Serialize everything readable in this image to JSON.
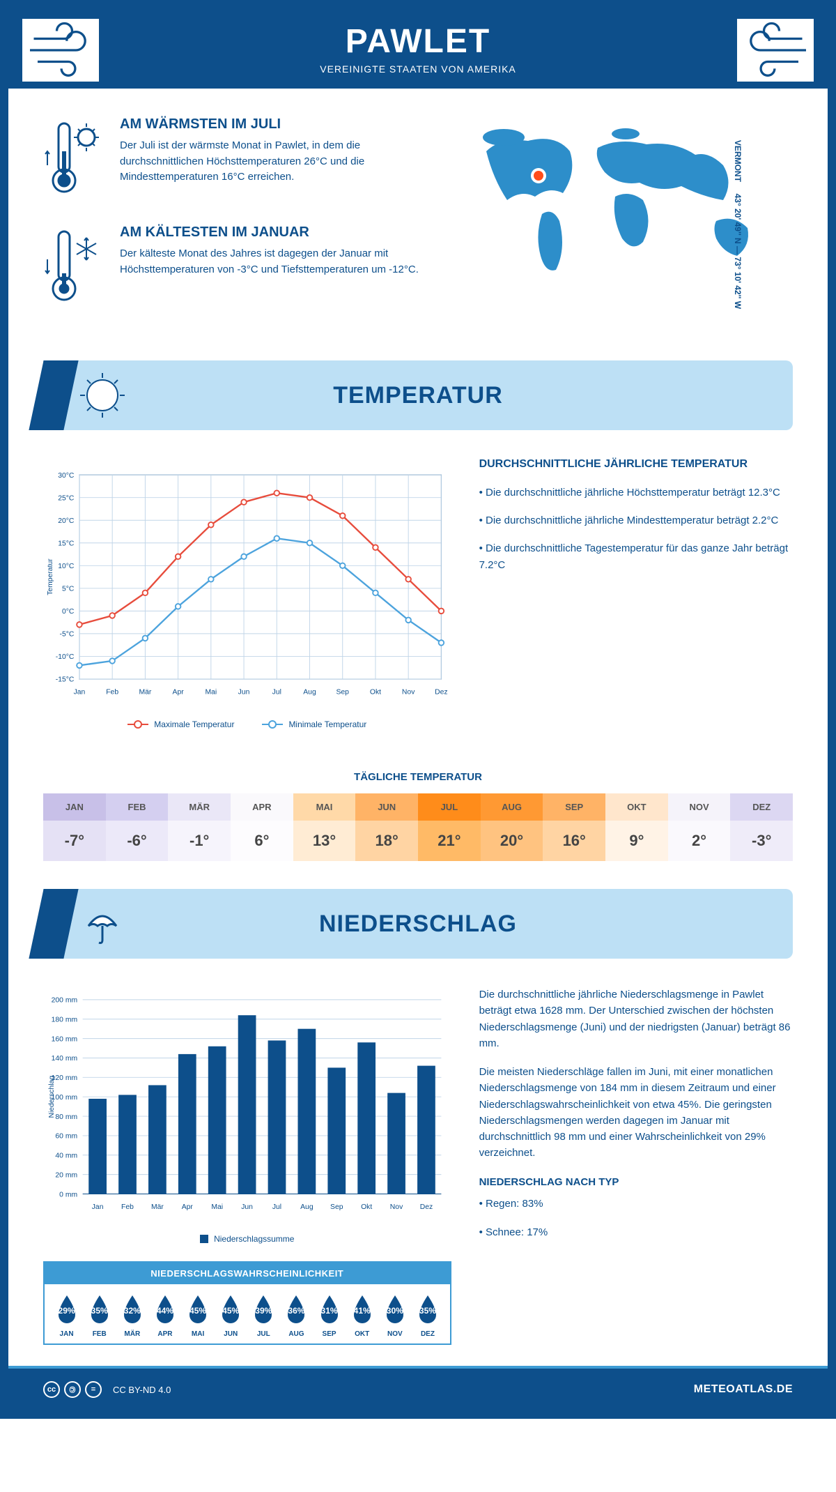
{
  "header": {
    "title": "PAWLET",
    "subtitle": "VEREINIGTE STAATEN VON AMERIKA"
  },
  "intro": {
    "warm": {
      "heading": "AM WÄRMSTEN IM JULI",
      "text": "Der Juli ist der wärmste Monat in Pawlet, in dem die durchschnittlichen Höchsttemperaturen 26°C und die Mindesttemperaturen 16°C erreichen."
    },
    "cold": {
      "heading": "AM KÄLTESTEN IM JANUAR",
      "text": "Der kälteste Monat des Jahres ist dagegen der Januar mit Höchsttemperaturen von -3°C und Tiefsttemperaturen um -12°C."
    },
    "coords": "43° 20' 49'' N — 73° 10' 42'' W",
    "state": "VERMONT"
  },
  "sections": {
    "temperature": "TEMPERATUR",
    "precipitation": "NIEDERSCHLAG"
  },
  "temp_chart": {
    "months": [
      "Jan",
      "Feb",
      "Mär",
      "Apr",
      "Mai",
      "Jun",
      "Jul",
      "Aug",
      "Sep",
      "Okt",
      "Nov",
      "Dez"
    ],
    "max_values": [
      -3,
      -1,
      4,
      12,
      19,
      24,
      26,
      25,
      21,
      14,
      7,
      0
    ],
    "min_values": [
      -12,
      -11,
      -6,
      1,
      7,
      12,
      16,
      15,
      10,
      4,
      -2,
      -7
    ],
    "ylim": [
      -15,
      30
    ],
    "ystep": 5,
    "max_color": "#e74c3c",
    "min_color": "#4ca3dd",
    "grid_color": "#c0d5e8",
    "axis_color": "#0d4f8b",
    "yaxis_label": "Temperatur",
    "legend_max": "Maximale Temperatur",
    "legend_min": "Minimale Temperatur"
  },
  "temp_info": {
    "heading": "DURCHSCHNITTLICHE JÄHRLICHE TEMPERATUR",
    "b1": "• Die durchschnittliche jährliche Höchsttemperatur beträgt 12.3°C",
    "b2": "• Die durchschnittliche jährliche Mindesttemperatur beträgt 2.2°C",
    "b3": "• Die durchschnittliche Tagestemperatur für das ganze Jahr beträgt 7.2°C"
  },
  "daily_temp": {
    "title": "TÄGLICHE TEMPERATUR",
    "months": [
      "JAN",
      "FEB",
      "MÄR",
      "APR",
      "MAI",
      "JUN",
      "JUL",
      "AUG",
      "SEP",
      "OKT",
      "NOV",
      "DEZ"
    ],
    "values": [
      "-7°",
      "-6°",
      "-1°",
      "6°",
      "13°",
      "18°",
      "21°",
      "20°",
      "16°",
      "9°",
      "2°",
      "-3°"
    ],
    "header_colors": [
      "#c8c0e8",
      "#d4cff0",
      "#eae7f7",
      "#faf9fc",
      "#ffd9a8",
      "#ffb366",
      "#ff8c1a",
      "#ff9933",
      "#ffb366",
      "#ffe6cc",
      "#f5f3fa",
      "#dcd7f2"
    ],
    "value_colors": [
      "#e5e1f5",
      "#ece9f9",
      "#f6f4fc",
      "#fdfcfe",
      "#ffecd4",
      "#ffd4a3",
      "#ffba66",
      "#ffc380",
      "#ffd4a3",
      "#fff3e6",
      "#faf9fd",
      "#efecf9"
    ]
  },
  "precip_chart": {
    "months": [
      "Jan",
      "Feb",
      "Mär",
      "Apr",
      "Mai",
      "Jun",
      "Jul",
      "Aug",
      "Sep",
      "Okt",
      "Nov",
      "Dez"
    ],
    "values": [
      98,
      102,
      112,
      144,
      152,
      184,
      158,
      170,
      130,
      156,
      104,
      132
    ],
    "ylim": [
      0,
      200
    ],
    "ystep": 20,
    "bar_color": "#0d4f8b",
    "grid_color": "#c0d5e8",
    "yaxis_label": "Niederschlag",
    "legend": "Niederschlagssumme"
  },
  "precip_info": {
    "p1": "Die durchschnittliche jährliche Niederschlagsmenge in Pawlet beträgt etwa 1628 mm. Der Unterschied zwischen der höchsten Niederschlagsmenge (Juni) und der niedrigsten (Januar) beträgt 86 mm.",
    "p2": "Die meisten Niederschläge fallen im Juni, mit einer monatlichen Niederschlagsmenge von 184 mm in diesem Zeitraum und einer Niederschlagswahrscheinlichkeit von etwa 45%. Die geringsten Niederschlagsmengen werden dagegen im Januar mit durchschnittlich 98 mm und einer Wahrscheinlichkeit von 29% verzeichnet.",
    "type_heading": "NIEDERSCHLAG NACH TYP",
    "rain": "• Regen: 83%",
    "snow": "• Schnee: 17%"
  },
  "prob": {
    "heading": "NIEDERSCHLAGSWAHRSCHEINLICHKEIT",
    "months": [
      "JAN",
      "FEB",
      "MÄR",
      "APR",
      "MAI",
      "JUN",
      "JUL",
      "AUG",
      "SEP",
      "OKT",
      "NOV",
      "DEZ"
    ],
    "values": [
      "29%",
      "35%",
      "32%",
      "44%",
      "45%",
      "45%",
      "39%",
      "36%",
      "31%",
      "41%",
      "30%",
      "35%"
    ],
    "drop_color": "#0d4f8b"
  },
  "footer": {
    "license": "CC BY-ND 4.0",
    "brand": "METEOATLAS.DE"
  },
  "colors": {
    "primary": "#0d4f8b",
    "accent": "#3d9bd4",
    "banner": "#bde0f5",
    "map": "#2d8eca",
    "marker": "#ff4d1a"
  }
}
